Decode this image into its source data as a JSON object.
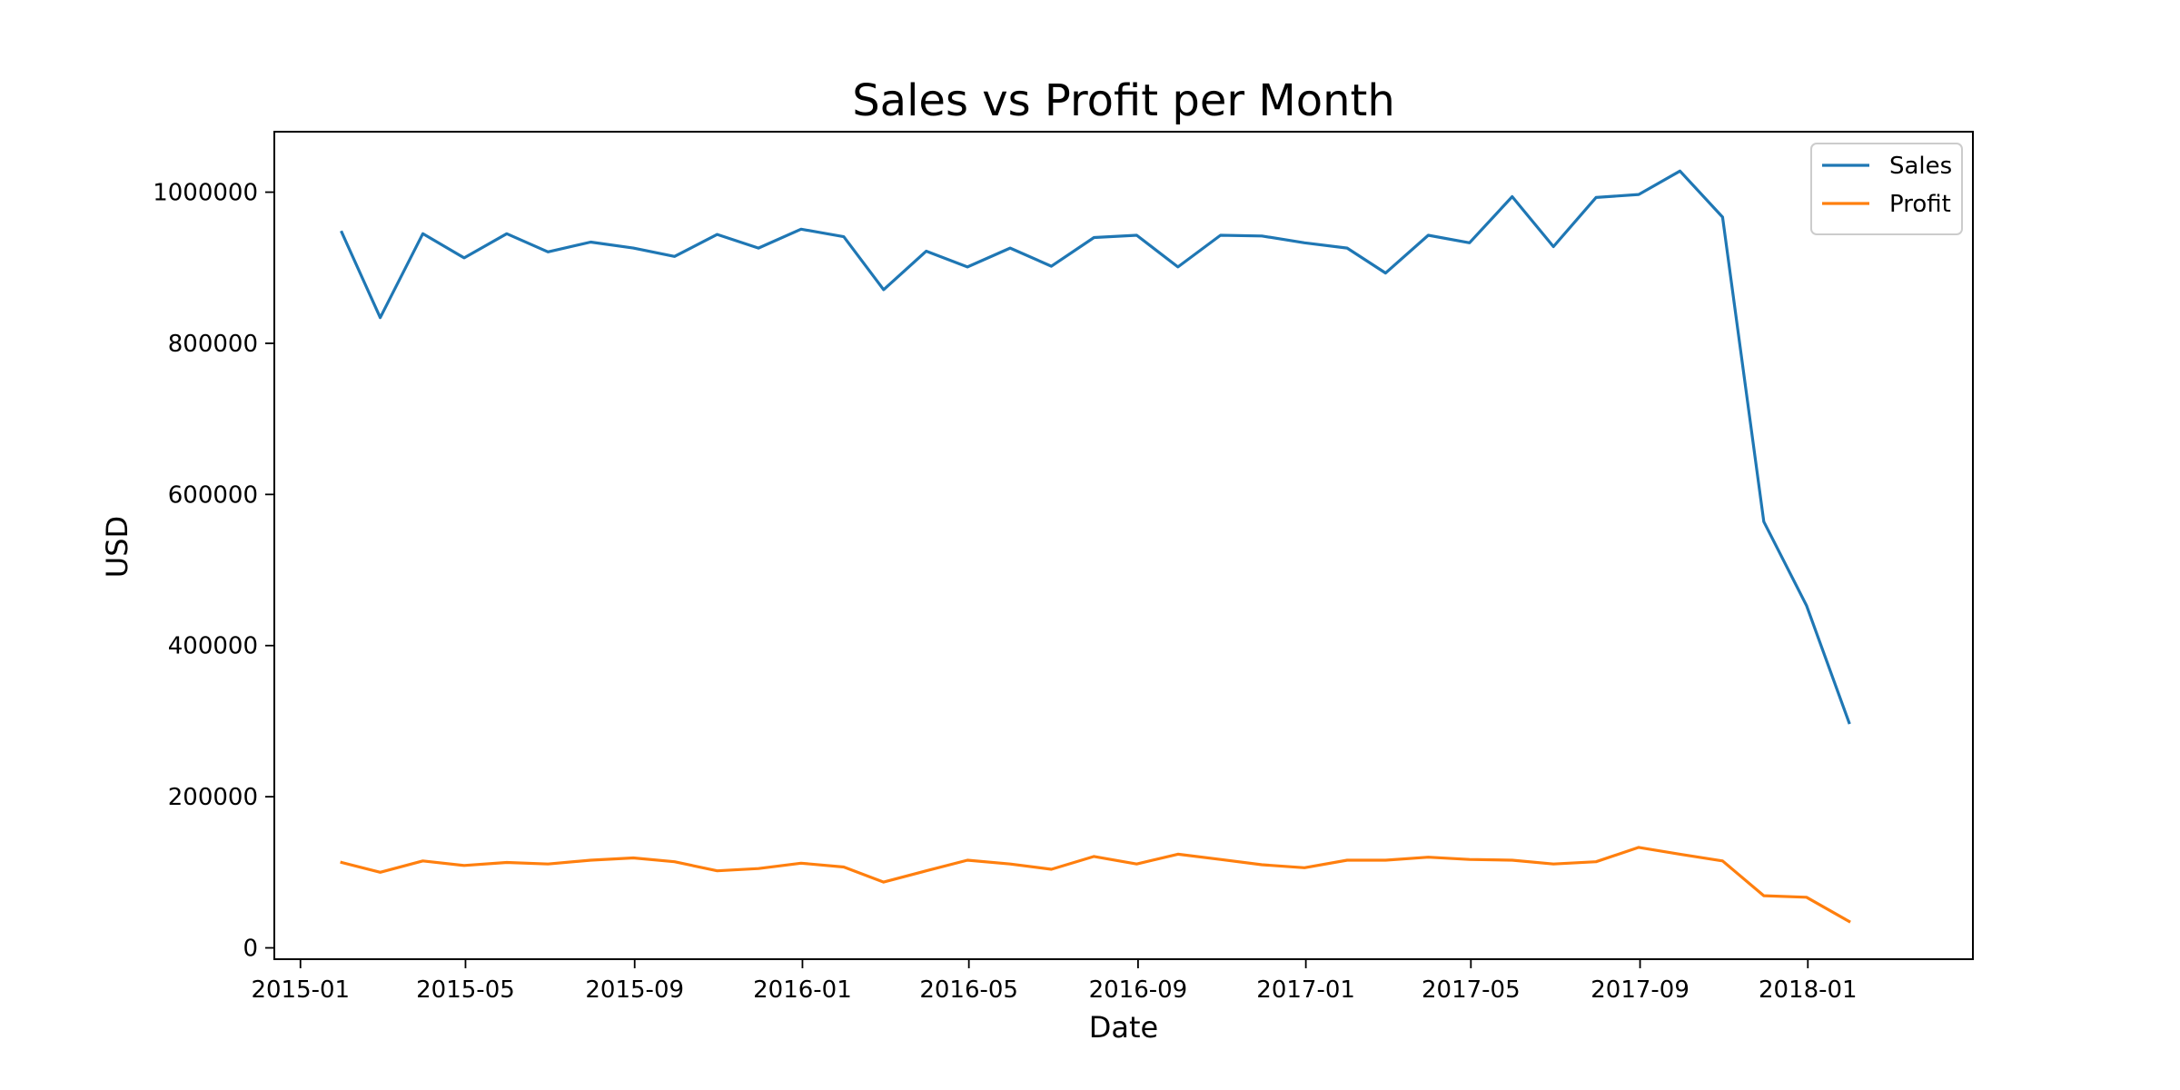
{
  "chart_data": {
    "type": "line",
    "title": "Sales vs Profit per Month",
    "xlabel": "Date",
    "ylabel": "USD",
    "x_ticks": [
      "2015-01",
      "2015-05",
      "2015-09",
      "2016-01",
      "2016-05",
      "2016-09",
      "2017-01",
      "2017-05",
      "2017-09",
      "2018-01"
    ],
    "y_ticks": [
      0,
      200000,
      400000,
      600000,
      800000,
      1000000
    ],
    "xlim": [
      "2014-12-13",
      "2018-05-01"
    ],
    "ylim": [
      -15000,
      1080000
    ],
    "grid": false,
    "legend_position": "top-right",
    "x": [
      "2015-01-31",
      "2015-02-28",
      "2015-03-31",
      "2015-04-30",
      "2015-05-31",
      "2015-06-30",
      "2015-07-31",
      "2015-08-31",
      "2015-09-30",
      "2015-10-31",
      "2015-11-30",
      "2015-12-31",
      "2016-01-31",
      "2016-02-29",
      "2016-03-31",
      "2016-04-30",
      "2016-05-31",
      "2016-06-30",
      "2016-07-31",
      "2016-08-31",
      "2016-09-30",
      "2016-10-31",
      "2016-11-30",
      "2016-12-31",
      "2017-01-31",
      "2017-02-28",
      "2017-03-31",
      "2017-04-30",
      "2017-05-31",
      "2017-06-30",
      "2017-07-31",
      "2017-08-31",
      "2017-09-30",
      "2017-10-31",
      "2017-11-30",
      "2017-12-31",
      "2018-01-31"
    ],
    "series": [
      {
        "name": "Sales",
        "color": "#1f77b4",
        "values": [
          947000,
          834000,
          945000,
          913000,
          945000,
          921000,
          934000,
          926000,
          915000,
          944000,
          926000,
          951000,
          941000,
          871000,
          922000,
          901000,
          926000,
          902000,
          940000,
          943000,
          901000,
          943000,
          942000,
          933000,
          926000,
          893000,
          943000,
          933000,
          994000,
          928000,
          993000,
          997000,
          1028000,
          967000,
          564000,
          453000,
          298000
        ]
      },
      {
        "name": "Profit",
        "color": "#ff7f0e",
        "values": [
          113000,
          100000,
          115000,
          109000,
          113000,
          111000,
          116000,
          119000,
          114000,
          102000,
          105000,
          112000,
          107000,
          87000,
          102000,
          116000,
          111000,
          104000,
          121000,
          111000,
          124000,
          117000,
          110000,
          106000,
          116000,
          116000,
          120000,
          117000,
          116000,
          111000,
          114000,
          133000,
          124000,
          115000,
          69000,
          67000,
          35000
        ]
      }
    ]
  }
}
